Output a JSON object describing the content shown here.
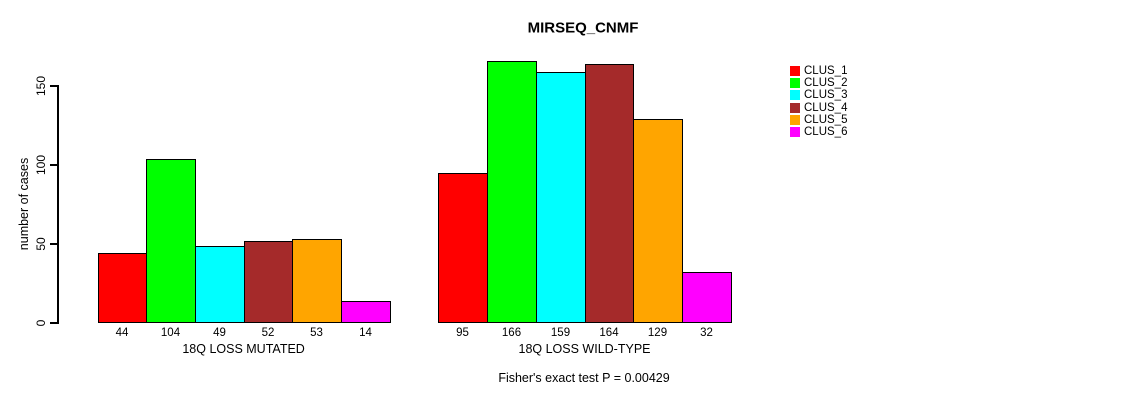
{
  "chart_data": {
    "type": "bar",
    "title": "MIRSEQ_CNMF",
    "ylabel": "number of cases",
    "xlabel": "",
    "ylim": [
      0,
      170
    ],
    "yticks": [
      0,
      50,
      100,
      150
    ],
    "grid": false,
    "bar_borders": true,
    "value_labels_shown": true,
    "legend_position": "right",
    "categories": [
      "18Q LOSS MUTATED",
      "18Q LOSS WILD-TYPE"
    ],
    "series": [
      {
        "name": "CLUS_1",
        "color": "#FF0000",
        "values": [
          44,
          95
        ]
      },
      {
        "name": "CLUS_2",
        "color": "#00FF00",
        "values": [
          104,
          166
        ]
      },
      {
        "name": "CLUS_3",
        "color": "#00FFFF",
        "values": [
          49,
          159
        ]
      },
      {
        "name": "CLUS_4",
        "color": "#A52A2A",
        "values": [
          52,
          164
        ]
      },
      {
        "name": "CLUS_5",
        "color": "#FFA500",
        "values": [
          53,
          129
        ]
      },
      {
        "name": "CLUS_6",
        "color": "#FF00FF",
        "values": [
          14,
          32
        ]
      }
    ],
    "annotation": "Fisher's exact test P = 0.00429"
  },
  "legend": {
    "items": [
      "CLUS_1",
      "CLUS_2",
      "CLUS_3",
      "CLUS_4",
      "CLUS_5",
      "CLUS_6"
    ]
  }
}
